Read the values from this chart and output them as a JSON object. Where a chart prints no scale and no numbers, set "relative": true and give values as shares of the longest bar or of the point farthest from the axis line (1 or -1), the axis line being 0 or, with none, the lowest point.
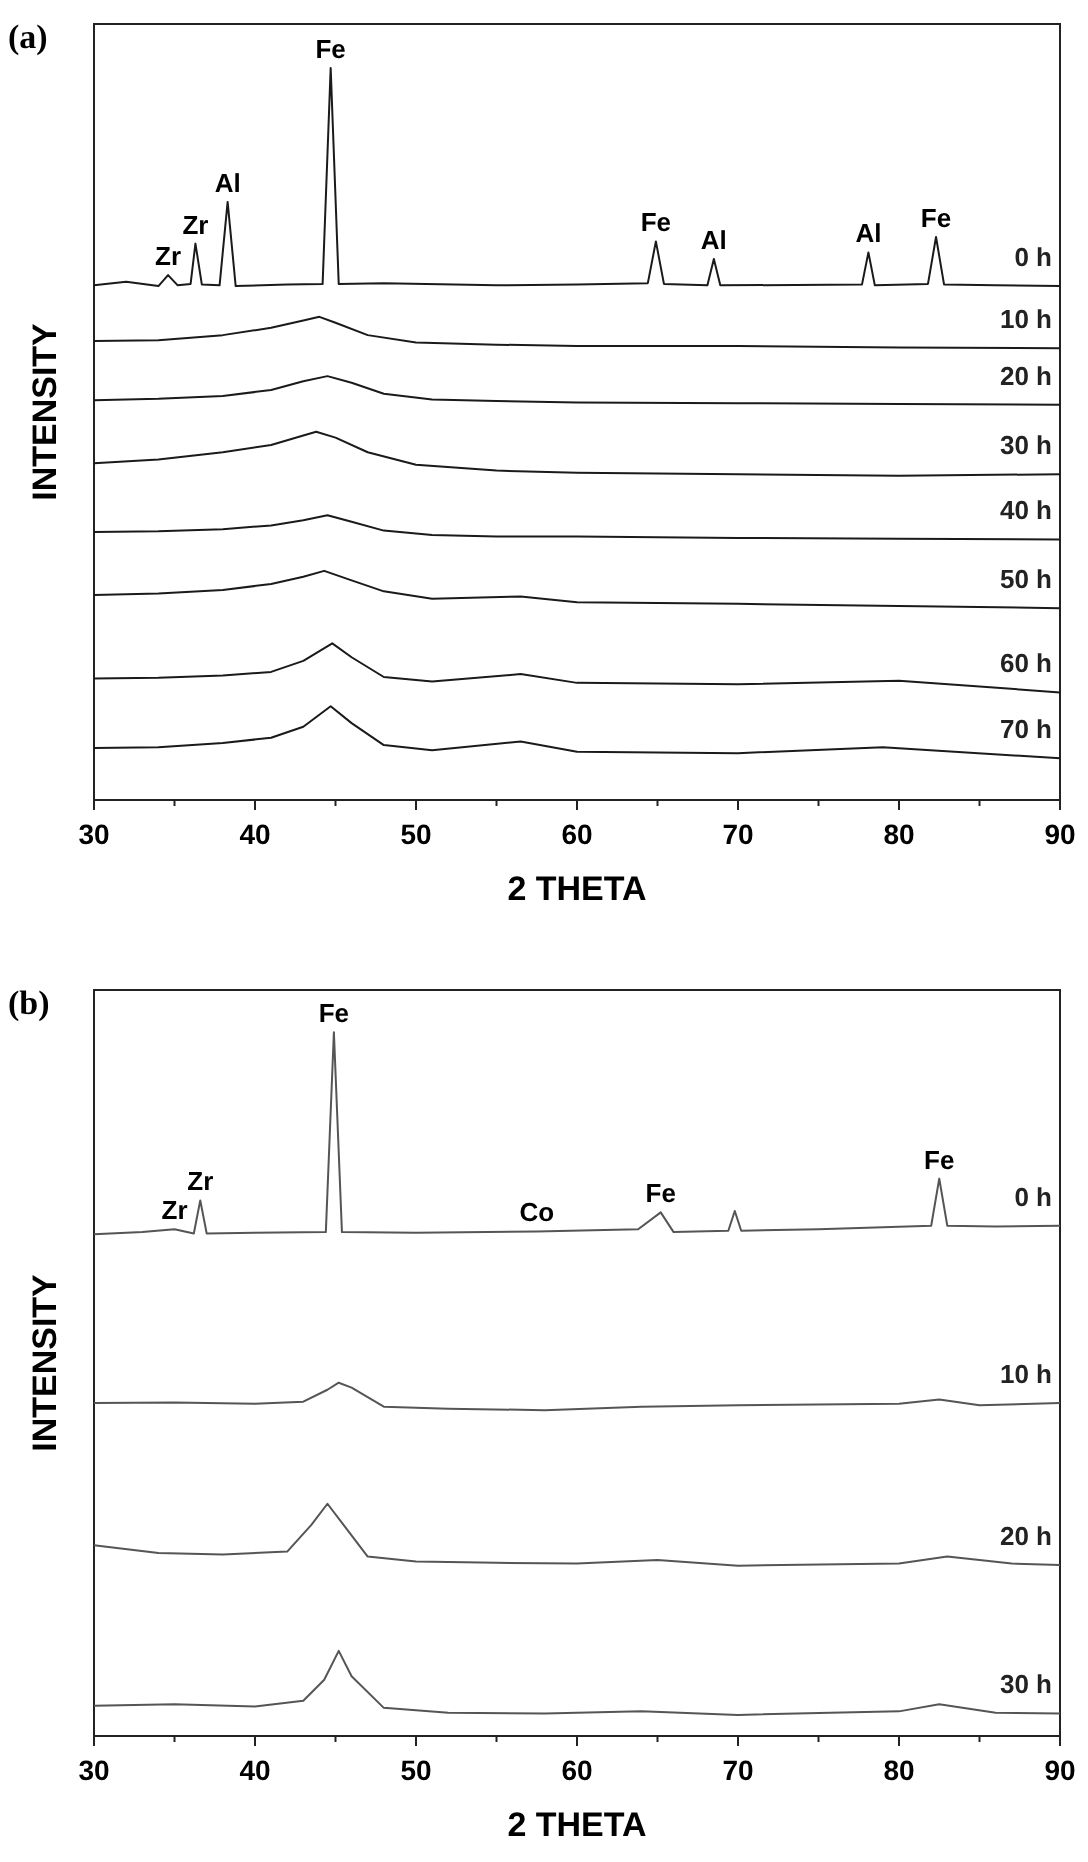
{
  "chart_data": [
    {
      "type": "line",
      "title": "(a)",
      "xlabel": "2 THETA",
      "ylabel": "INTENSITY",
      "relative": true,
      "tick_labels": "x",
      "xlim": [
        30,
        90
      ],
      "xticks": [
        30,
        {
          "value": 35,
          "label": null
        },
        40,
        {
          "value": 45,
          "label": null
        },
        50,
        {
          "value": 55,
          "label": null
        },
        60,
        {
          "value": 65,
          "label": null
        },
        70,
        {
          "value": 75,
          "label": null
        },
        80,
        {
          "value": 85,
          "label": null
        },
        90
      ],
      "series": [
        {
          "name": "0 h",
          "color": "#1a1a1a",
          "x": [
            30,
            32,
            34,
            34.6,
            35.2,
            36,
            36.3,
            36.7,
            37.8,
            38.3,
            38.8,
            42,
            44.2,
            44.7,
            45.2,
            48,
            55,
            60,
            64.4,
            64.9,
            65.4,
            68.1,
            68.5,
            68.9,
            77.7,
            78.1,
            78.5,
            81.8,
            82.3,
            82.8,
            86,
            90
          ],
          "values": [
            0.703,
            0.708,
            0.702,
            0.717,
            0.703,
            0.705,
            0.76,
            0.704,
            0.703,
            0.817,
            0.702,
            0.704,
            0.705,
            1.0,
            0.705,
            0.706,
            0.703,
            0.704,
            0.706,
            0.763,
            0.705,
            0.703,
            0.739,
            0.703,
            0.704,
            0.748,
            0.703,
            0.705,
            0.769,
            0.704,
            0.703,
            0.702
          ]
        },
        {
          "name": "10 h",
          "color": "#1a1a1a",
          "x": [
            30,
            34,
            38,
            41,
            43,
            44,
            45,
            47,
            50,
            55,
            60,
            70,
            80,
            90
          ],
          "values": [
            0.627,
            0.628,
            0.635,
            0.645,
            0.655,
            0.66,
            0.652,
            0.635,
            0.625,
            0.622,
            0.62,
            0.62,
            0.618,
            0.617
          ]
        },
        {
          "name": "20 h",
          "color": "#1a1a1a",
          "x": [
            30,
            34,
            38,
            41,
            43,
            44.5,
            46,
            48,
            51,
            55,
            60,
            70,
            80,
            90
          ],
          "values": [
            0.546,
            0.548,
            0.552,
            0.56,
            0.572,
            0.579,
            0.57,
            0.555,
            0.547,
            0.545,
            0.543,
            0.542,
            0.541,
            0.54
          ]
        },
        {
          "name": "30 h",
          "color": "#1a1a1a",
          "x": [
            30,
            34,
            38,
            41,
            43,
            43.8,
            45,
            47,
            50,
            55,
            60,
            70,
            80,
            90
          ],
          "values": [
            0.46,
            0.465,
            0.475,
            0.485,
            0.498,
            0.503,
            0.495,
            0.475,
            0.458,
            0.45,
            0.447,
            0.445,
            0.443,
            0.445
          ]
        },
        {
          "name": "40 h",
          "color": "#1a1a1a",
          "x": [
            30,
            34,
            38,
            41,
            43,
            44.5,
            46,
            48,
            51,
            55,
            60,
            70,
            80,
            90
          ],
          "values": [
            0.366,
            0.367,
            0.37,
            0.375,
            0.382,
            0.389,
            0.38,
            0.368,
            0.362,
            0.36,
            0.36,
            0.358,
            0.357,
            0.356
          ]
        },
        {
          "name": "50 h",
          "color": "#1a1a1a",
          "x": [
            30,
            34,
            38,
            41,
            43,
            44.3,
            46,
            48,
            51,
            56.5,
            60,
            70,
            80,
            90
          ],
          "values": [
            0.28,
            0.282,
            0.287,
            0.295,
            0.305,
            0.313,
            0.3,
            0.285,
            0.275,
            0.278,
            0.27,
            0.268,
            0.265,
            0.262
          ]
        },
        {
          "name": "60 h",
          "color": "#1a1a1a",
          "x": [
            30,
            34,
            38,
            41,
            43,
            44.8,
            46,
            48,
            51,
            56.5,
            60,
            70,
            80,
            90
          ],
          "values": [
            0.166,
            0.167,
            0.17,
            0.175,
            0.19,
            0.214,
            0.195,
            0.168,
            0.162,
            0.172,
            0.16,
            0.158,
            0.163,
            0.147
          ]
        },
        {
          "name": "70 h",
          "color": "#1a1a1a",
          "x": [
            30,
            34,
            38,
            41,
            43,
            44.7,
            46,
            48,
            51,
            56.5,
            60,
            70,
            79,
            90
          ],
          "values": [
            0.071,
            0.072,
            0.078,
            0.085,
            0.1,
            0.128,
            0.105,
            0.075,
            0.068,
            0.08,
            0.066,
            0.064,
            0.072,
            0.057
          ]
        }
      ],
      "annotations": [
        {
          "text": "Zr",
          "x": 34.6,
          "y": 0.717
        },
        {
          "text": "Zr",
          "x": 36.3,
          "y": 0.76
        },
        {
          "text": "Al",
          "x": 38.3,
          "y": 0.817
        },
        {
          "text": "Fe",
          "x": 44.7,
          "y": 1.0
        },
        {
          "text": "Fe",
          "x": 64.9,
          "y": 0.763
        },
        {
          "text": "Al",
          "x": 68.5,
          "y": 0.739
        },
        {
          "text": "Al",
          "x": 78.1,
          "y": 0.748
        },
        {
          "text": "Fe",
          "x": 82.3,
          "y": 0.769
        }
      ]
    },
    {
      "type": "line",
      "title": "(b)",
      "xlabel": "2 THETA",
      "ylabel": "INTENSITY",
      "relative": true,
      "tick_labels": "x",
      "xlim": [
        30,
        90
      ],
      "xticks": [
        30,
        {
          "value": 35,
          "label": null
        },
        40,
        {
          "value": 45,
          "label": null
        },
        50,
        {
          "value": 55,
          "label": null
        },
        60,
        {
          "value": 65,
          "label": null
        },
        70,
        {
          "value": 75,
          "label": null
        },
        80,
        {
          "value": 85,
          "label": null
        },
        90
      ],
      "series": [
        {
          "name": "0 h",
          "color": "#555555",
          "x": [
            30,
            33,
            35,
            36.2,
            36.6,
            37,
            40,
            44.4,
            44.9,
            45.4,
            50,
            57.5,
            63.8,
            65.2,
            66,
            69.4,
            69.8,
            70.2,
            75,
            82,
            82.5,
            83,
            86,
            90
          ],
          "values": [
            0.713,
            0.716,
            0.72,
            0.714,
            0.761,
            0.714,
            0.715,
            0.716,
            1.0,
            0.716,
            0.715,
            0.717,
            0.72,
            0.744,
            0.716,
            0.718,
            0.746,
            0.718,
            0.72,
            0.725,
            0.792,
            0.725,
            0.724,
            0.725
          ]
        },
        {
          "name": "10 h",
          "color": "#555555",
          "x": [
            30,
            35,
            40,
            43,
            44.5,
            45.2,
            46,
            48,
            52,
            58,
            64,
            70,
            80,
            82.5,
            85,
            90
          ],
          "values": [
            0.473,
            0.474,
            0.472,
            0.475,
            0.492,
            0.502,
            0.495,
            0.468,
            0.465,
            0.463,
            0.468,
            0.47,
            0.472,
            0.478,
            0.47,
            0.473
          ]
        },
        {
          "name": "20 h",
          "color": "#555555",
          "x": [
            30,
            34,
            38,
            42,
            43.5,
            44.5,
            45.5,
            47,
            50,
            55,
            60,
            65,
            70,
            80,
            83,
            87,
            90
          ],
          "values": [
            0.271,
            0.26,
            0.258,
            0.262,
            0.3,
            0.33,
            0.3,
            0.255,
            0.248,
            0.246,
            0.245,
            0.25,
            0.242,
            0.245,
            0.255,
            0.245,
            0.243
          ]
        },
        {
          "name": "30 h",
          "color": "#555555",
          "x": [
            30,
            35,
            40,
            43,
            44.3,
            45.2,
            46,
            48,
            52,
            58,
            64,
            70,
            80,
            82.5,
            86,
            90
          ],
          "values": [
            0.043,
            0.045,
            0.042,
            0.05,
            0.08,
            0.121,
            0.085,
            0.04,
            0.033,
            0.032,
            0.035,
            0.03,
            0.035,
            0.045,
            0.033,
            0.032
          ]
        }
      ],
      "annotations": [
        {
          "text": "Zr",
          "x": 35,
          "y": 0.72
        },
        {
          "text": "Zr",
          "x": 36.6,
          "y": 0.761
        },
        {
          "text": "Fe",
          "x": 44.9,
          "y": 1.0
        },
        {
          "text": "Co",
          "x": 57.5,
          "y": 0.717
        },
        {
          "text": "Fe",
          "x": 65.2,
          "y": 0.744
        },
        {
          "text": "Fe",
          "x": 82.5,
          "y": 0.792
        }
      ]
    }
  ]
}
